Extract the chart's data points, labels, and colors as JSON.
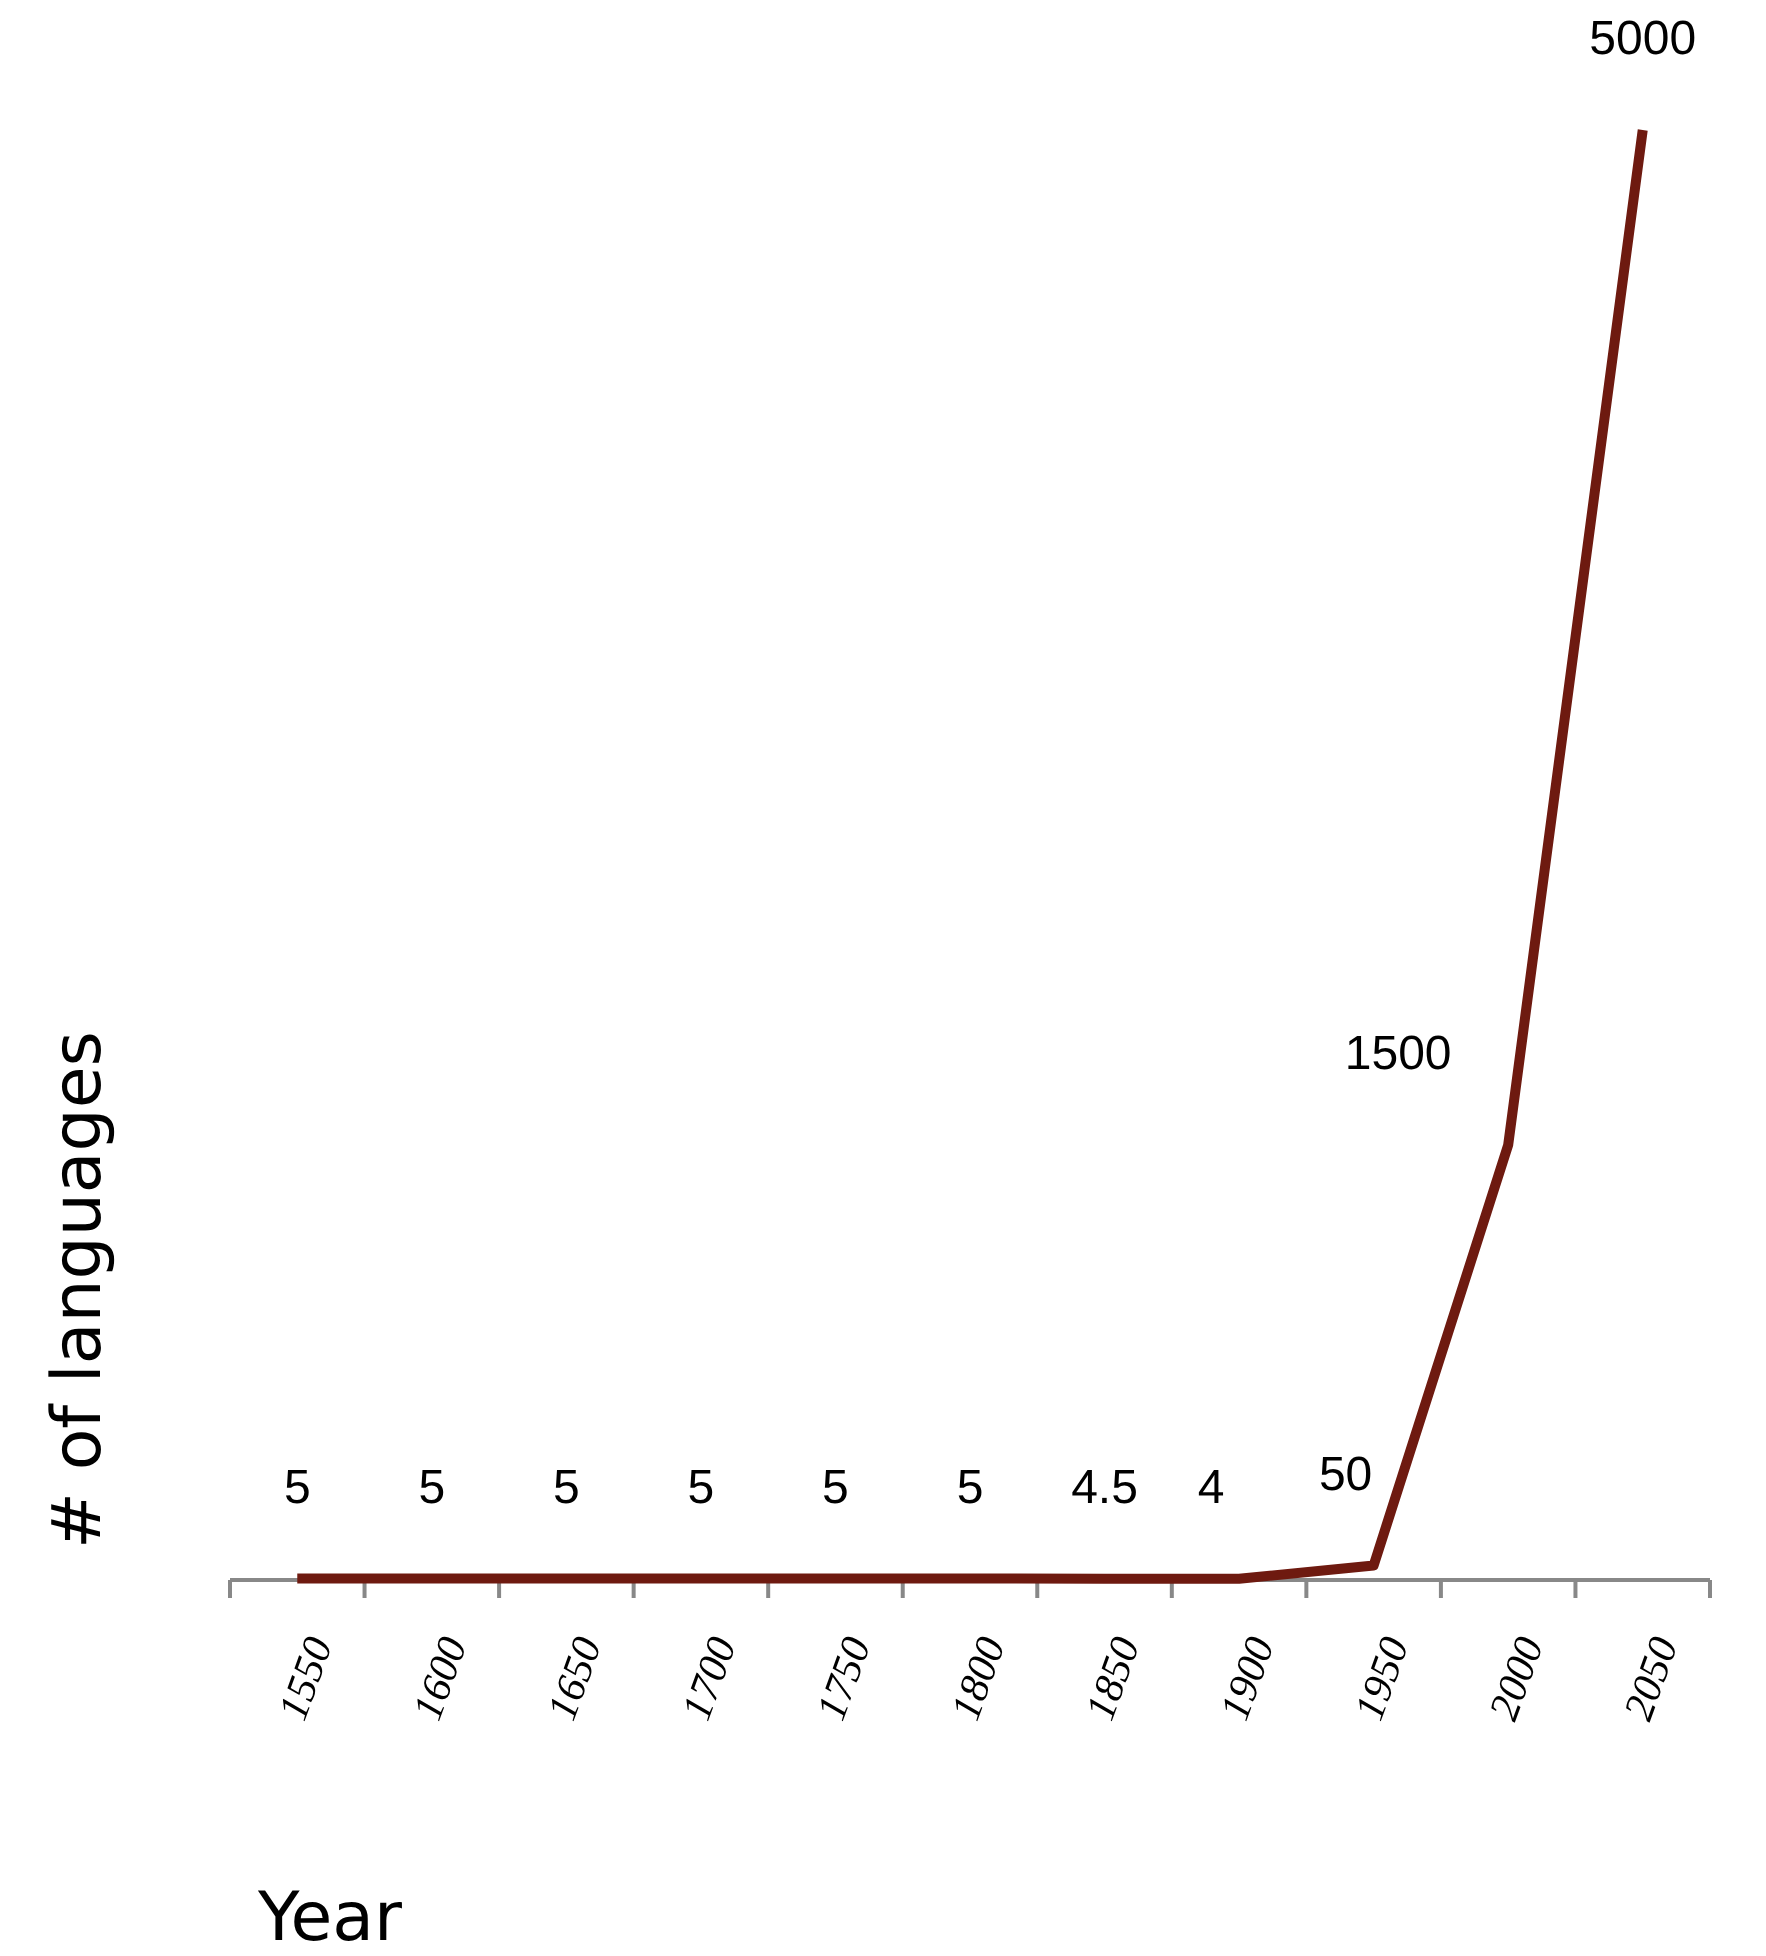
{
  "chart_data": {
    "type": "line",
    "xlabel": "Year",
    "ylabel": "# of languages",
    "categories": [
      "1550",
      "1600",
      "1650",
      "1700",
      "1750",
      "1800",
      "1850",
      "1900",
      "1950",
      "2000",
      "2050"
    ],
    "series": [
      {
        "color": "#6e1a10",
        "values": [
          5,
          5,
          5,
          5,
          5,
          5,
          4.5,
          4,
          50,
          1500,
          5000
        ]
      }
    ],
    "data_labels": true,
    "marker": "none",
    "line_style": "solid"
  }
}
